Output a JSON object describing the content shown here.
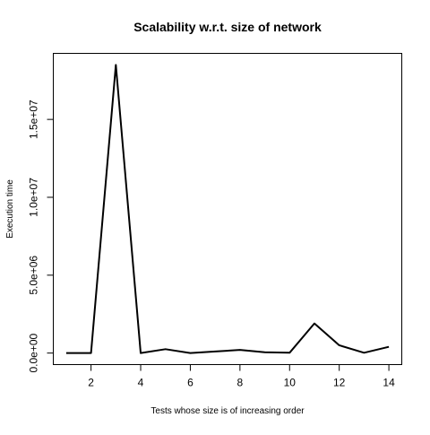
{
  "chart_data": {
    "type": "line",
    "title": "Scalability w.r.t. size of network",
    "xlabel": "Tests whose size is of increasing order",
    "ylabel": "Execution time",
    "x": [
      1,
      2,
      3,
      4,
      5,
      6,
      7,
      8,
      9,
      10,
      11,
      12,
      13,
      14
    ],
    "series": [
      {
        "values": [
          0,
          0,
          18500000,
          0,
          250000,
          0,
          100000,
          200000,
          50000,
          20000,
          1900000,
          500000,
          20000,
          400000
        ],
        "color": "#000000"
      }
    ],
    "xlim": [
      0.48,
      14.52
    ],
    "ylim": [
      -740000,
      19240000
    ],
    "x_ticks": [
      2,
      4,
      6,
      8,
      10,
      12,
      14
    ],
    "x_tick_labels": [
      "2",
      "4",
      "6",
      "8",
      "10",
      "12",
      "14"
    ],
    "y_ticks": [
      0,
      5000000,
      10000000,
      15000000
    ],
    "y_tick_labels": [
      "0.0e+00",
      "5.0e+06",
      "1.0e+07",
      "1.5e+07"
    ],
    "grid": false,
    "legend": "none"
  }
}
